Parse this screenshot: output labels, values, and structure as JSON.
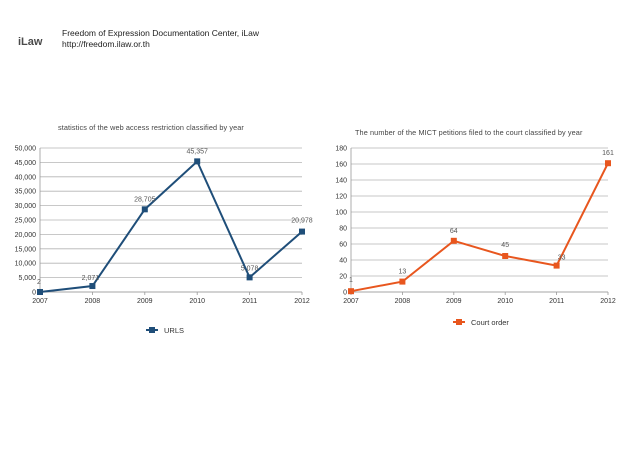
{
  "header": {
    "logo_text": "iLaw",
    "org_name": "Freedom of Expression Documentation Center, iLaw",
    "url": "http://freedom.ilaw.or.th"
  },
  "colors": {
    "left_series": "#1f4e79",
    "right_series": "#e8561e"
  },
  "chart_data": [
    {
      "type": "line",
      "title": "statistics of the web access restriction classified by year",
      "x": [
        "2007",
        "2008",
        "2009",
        "2010",
        "2011",
        "2012"
      ],
      "series": [
        {
          "name": "URLS",
          "values": [
            2,
            2071,
            28705,
            45357,
            5078,
            20978
          ]
        }
      ],
      "data_labels": [
        "2",
        "2,071",
        "28,705",
        "45,357",
        "5,078",
        "20,978"
      ],
      "y_ticks": [
        "0",
        "5,000",
        "10,000",
        "15,000",
        "20,000",
        "25,000",
        "30,000",
        "35,000",
        "40,000",
        "45,000",
        "50,000"
      ],
      "ylim": [
        0,
        50000
      ],
      "grid": true,
      "legend": "bottom",
      "xlabel": "",
      "ylabel": ""
    },
    {
      "type": "line",
      "title": "The number of the MICT petitions filed to the court classified by year",
      "x": [
        "2007",
        "2008",
        "2009",
        "2010",
        "2011",
        "2012"
      ],
      "series": [
        {
          "name": "Court order",
          "values": [
            1,
            13,
            64,
            45,
            33,
            161
          ]
        }
      ],
      "data_labels": [
        "1",
        "13",
        "64",
        "45",
        "33",
        "161"
      ],
      "y_ticks": [
        "0",
        "20",
        "40",
        "60",
        "80",
        "100",
        "120",
        "140",
        "160",
        "180"
      ],
      "ylim": [
        0,
        180
      ],
      "grid": true,
      "legend": "bottom",
      "xlabel": "",
      "ylabel": ""
    }
  ]
}
